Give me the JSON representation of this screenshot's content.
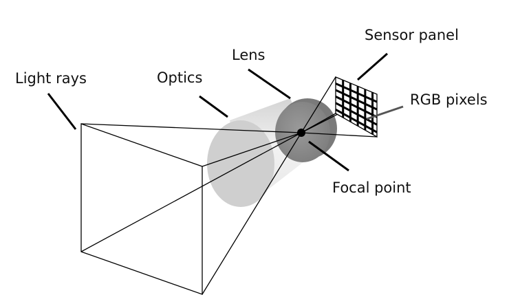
{
  "labels": {
    "light_rays": "Light rays",
    "optics": "Optics",
    "lens": "Lens",
    "sensor_panel": "Sensor panel",
    "rgb_pixels": "RGB pixels",
    "focal_point": "Focal point"
  },
  "sensor_grid": {
    "columns": 5,
    "rows": 5
  },
  "colors": {
    "stroke": "#000000",
    "cylinder_body": "#e2e2e2",
    "cylinder_front": "#cfcfcf",
    "lens_face": "#8f8f8f",
    "lens_rim": "#7a7a7a",
    "leader_gray": "#555555"
  }
}
